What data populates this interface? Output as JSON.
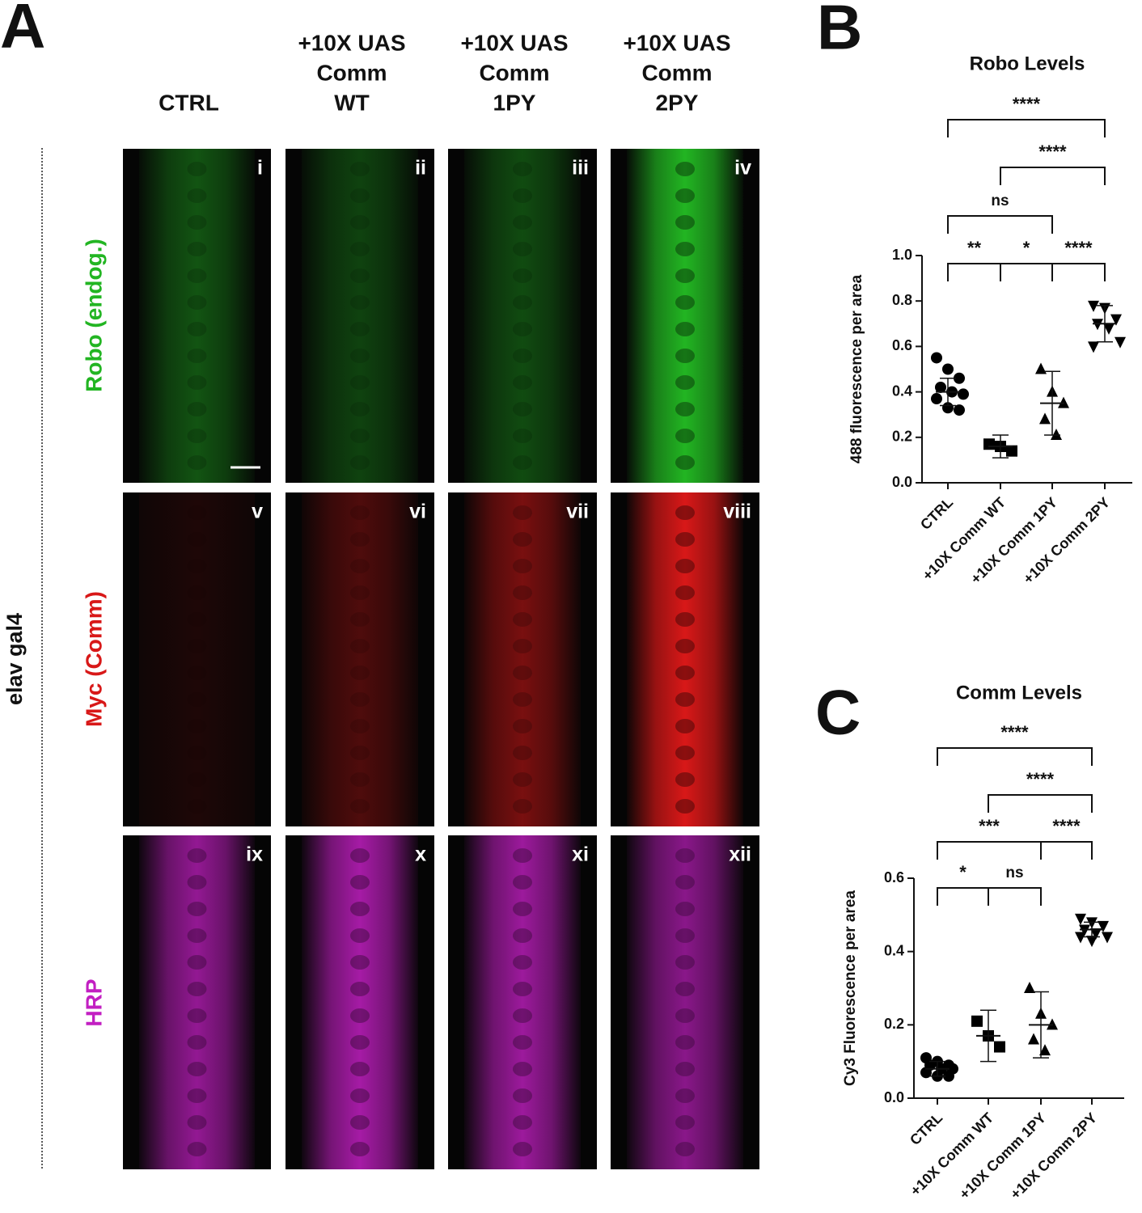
{
  "panel_a": {
    "letter": "A",
    "columns": [
      [
        "CTRL"
      ],
      [
        "+10X UAS",
        "Comm",
        "WT"
      ],
      [
        "+10X UAS",
        "Comm",
        "1PY"
      ],
      [
        "+10X UAS",
        "Comm",
        "2PY"
      ]
    ],
    "rows": [
      {
        "label": "Robo (endog.)",
        "color": "#22b522",
        "panels": [
          "i",
          "ii",
          "iii",
          "iv"
        ]
      },
      {
        "label": "Myc (Comm)",
        "color": "#d81818",
        "panels": [
          "v",
          "vi",
          "vii",
          "viii"
        ]
      },
      {
        "label": "HRP",
        "color": "#c21fc2",
        "panels": [
          "ix",
          "x",
          "xi",
          "xii"
        ]
      }
    ],
    "side_label": "elav gal4"
  },
  "chart_data": [
    {
      "type": "scatter",
      "letter": "B",
      "title": "Robo Levels",
      "ylabel": "488 fluorescence per area",
      "categories": [
        "CTRL",
        "+10X Comm WT",
        "+10X Comm 1PY",
        "+10X Comm 2PY"
      ],
      "markers": [
        "circle",
        "square",
        "triangle-up",
        "triangle-down"
      ],
      "color": "#000000",
      "points": [
        [
          0.55,
          0.5,
          0.46,
          0.42,
          0.4,
          0.39,
          0.37,
          0.33,
          0.32
        ],
        [
          0.17,
          0.16,
          0.14
        ],
        [
          0.5,
          0.4,
          0.35,
          0.28,
          0.21
        ],
        [
          0.78,
          0.77,
          0.72,
          0.7,
          0.68,
          0.62,
          0.6
        ]
      ],
      "means": [
        0.4,
        0.16,
        0.35,
        0.7
      ],
      "sd": [
        0.06,
        0.05,
        0.14,
        0.08
      ],
      "ylim": [
        0,
        1
      ],
      "yticks": [
        {
          "value": 0,
          "label": "0.0"
        },
        0.2,
        0.4,
        0.6,
        0.8,
        {
          "value": 1,
          "label": "1.0"
        }
      ],
      "bracket_rows": [
        [
          {
            "label": "****",
            "from": 0,
            "to": 3
          }
        ],
        [
          {
            "label": "****",
            "from": 1,
            "to": 3
          }
        ],
        [
          {
            "label": "ns",
            "from": 0,
            "to": 2
          }
        ],
        [
          {
            "label": "**",
            "from": 0,
            "to": 1
          },
          {
            "label": "*",
            "from": 1,
            "to": 2
          },
          {
            "label": "****",
            "from": 2,
            "to": 3
          }
        ]
      ]
    },
    {
      "type": "scatter",
      "letter": "C",
      "title": "Comm Levels",
      "ylabel": "Cy3 Fluorescence per area",
      "categories": [
        "CTRL",
        "+10X Comm WT",
        "+10X Comm 1PY",
        "+10X Comm 2PY"
      ],
      "markers": [
        "circle",
        "square",
        "triangle-up",
        "triangle-down"
      ],
      "color": "#000000",
      "points": [
        [
          0.11,
          0.1,
          0.09,
          0.09,
          0.08,
          0.08,
          0.07,
          0.06,
          0.06
        ],
        [
          0.21,
          0.17,
          0.14
        ],
        [
          0.3,
          0.23,
          0.2,
          0.16,
          0.13
        ],
        [
          0.49,
          0.48,
          0.47,
          0.46,
          0.45,
          0.44,
          0.44,
          0.43
        ]
      ],
      "means": [
        0.08,
        0.17,
        0.2,
        0.46
      ],
      "sd": [
        0.02,
        0.07,
        0.09,
        0.02
      ],
      "ylim": [
        0,
        0.6
      ],
      "yticks": [
        {
          "value": 0,
          "label": "0.0"
        },
        0.2,
        0.4,
        0.6
      ],
      "bracket_rows": [
        [
          {
            "label": "****",
            "from": 0,
            "to": 3
          }
        ],
        [
          {
            "label": "****",
            "from": 1,
            "to": 3
          }
        ],
        [
          {
            "label": "***",
            "from": 0,
            "to": 2
          },
          {
            "label": "****",
            "from": 2,
            "to": 3
          }
        ],
        [
          {
            "label": "*",
            "from": 0,
            "to": 1
          },
          {
            "label": "ns",
            "from": 1,
            "to": 2
          }
        ]
      ]
    }
  ]
}
